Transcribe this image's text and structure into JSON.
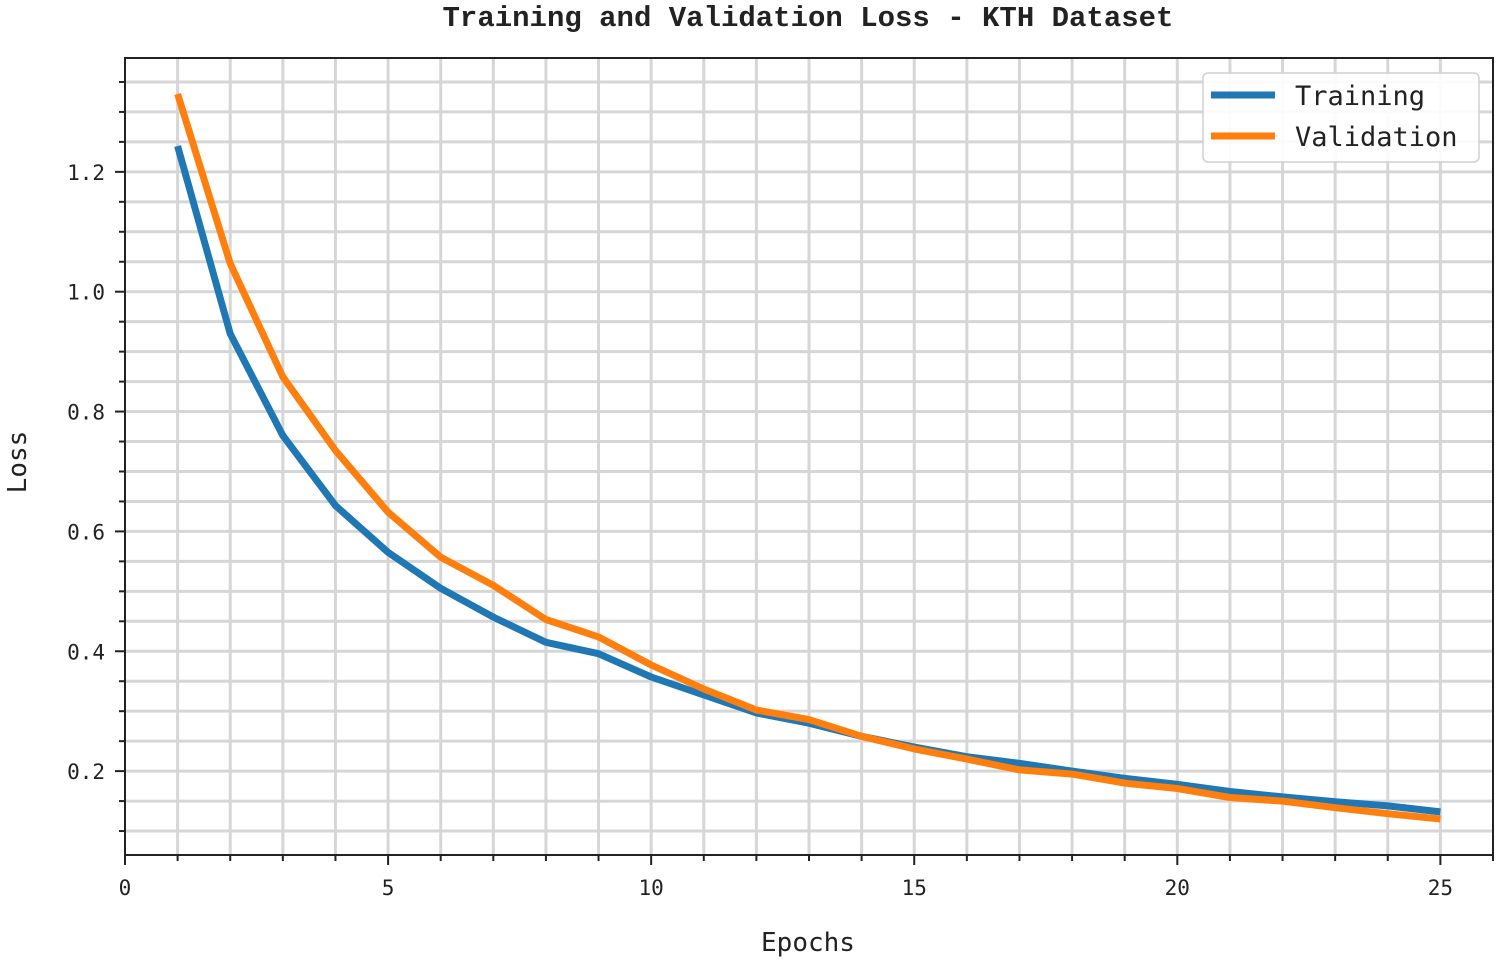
{
  "chart_data": {
    "type": "line",
    "title": "Training and Validation Loss - KTH Dataset",
    "xlabel": "Epochs",
    "ylabel": "Loss",
    "xlim": [
      0,
      26
    ],
    "ylim": [
      0.06,
      1.39
    ],
    "x_major_ticks": [
      0,
      5,
      10,
      15,
      20,
      25
    ],
    "x_tick_labels": [
      "0",
      "5",
      "10",
      "15",
      "20",
      "25"
    ],
    "x_minor_step": 1,
    "y_major_ticks": [
      0.2,
      0.4,
      0.6,
      0.8,
      1.0,
      1.2
    ],
    "y_tick_labels": [
      "0.2",
      "0.4",
      "0.6",
      "0.8",
      "1.0",
      "1.2"
    ],
    "y_minor_step": 0.05,
    "grid": true,
    "legend_position": "upper right",
    "x": [
      1,
      2,
      3,
      4,
      5,
      6,
      7,
      8,
      9,
      10,
      11,
      12,
      13,
      14,
      15,
      16,
      17,
      18,
      19,
      20,
      21,
      22,
      23,
      24,
      25
    ],
    "series": [
      {
        "name": "Training",
        "color": "#1f77b4",
        "values": [
          1.243,
          0.93,
          0.76,
          0.643,
          0.565,
          0.505,
          0.457,
          0.415,
          0.396,
          0.357,
          0.327,
          0.297,
          0.28,
          0.258,
          0.24,
          0.224,
          0.213,
          0.2,
          0.188,
          0.178,
          0.166,
          0.157,
          0.149,
          0.142,
          0.132
        ]
      },
      {
        "name": "Validation",
        "color": "#ff7f0e",
        "values": [
          1.33,
          1.047,
          0.858,
          0.735,
          0.632,
          0.557,
          0.51,
          0.453,
          0.424,
          0.377,
          0.337,
          0.302,
          0.286,
          0.258,
          0.237,
          0.22,
          0.202,
          0.195,
          0.18,
          0.171,
          0.156,
          0.15,
          0.139,
          0.129,
          0.12
        ]
      }
    ]
  },
  "legend": {
    "items": [
      {
        "label": "Training",
        "color": "#1f77b4"
      },
      {
        "label": "Validation",
        "color": "#ff7f0e"
      }
    ]
  }
}
